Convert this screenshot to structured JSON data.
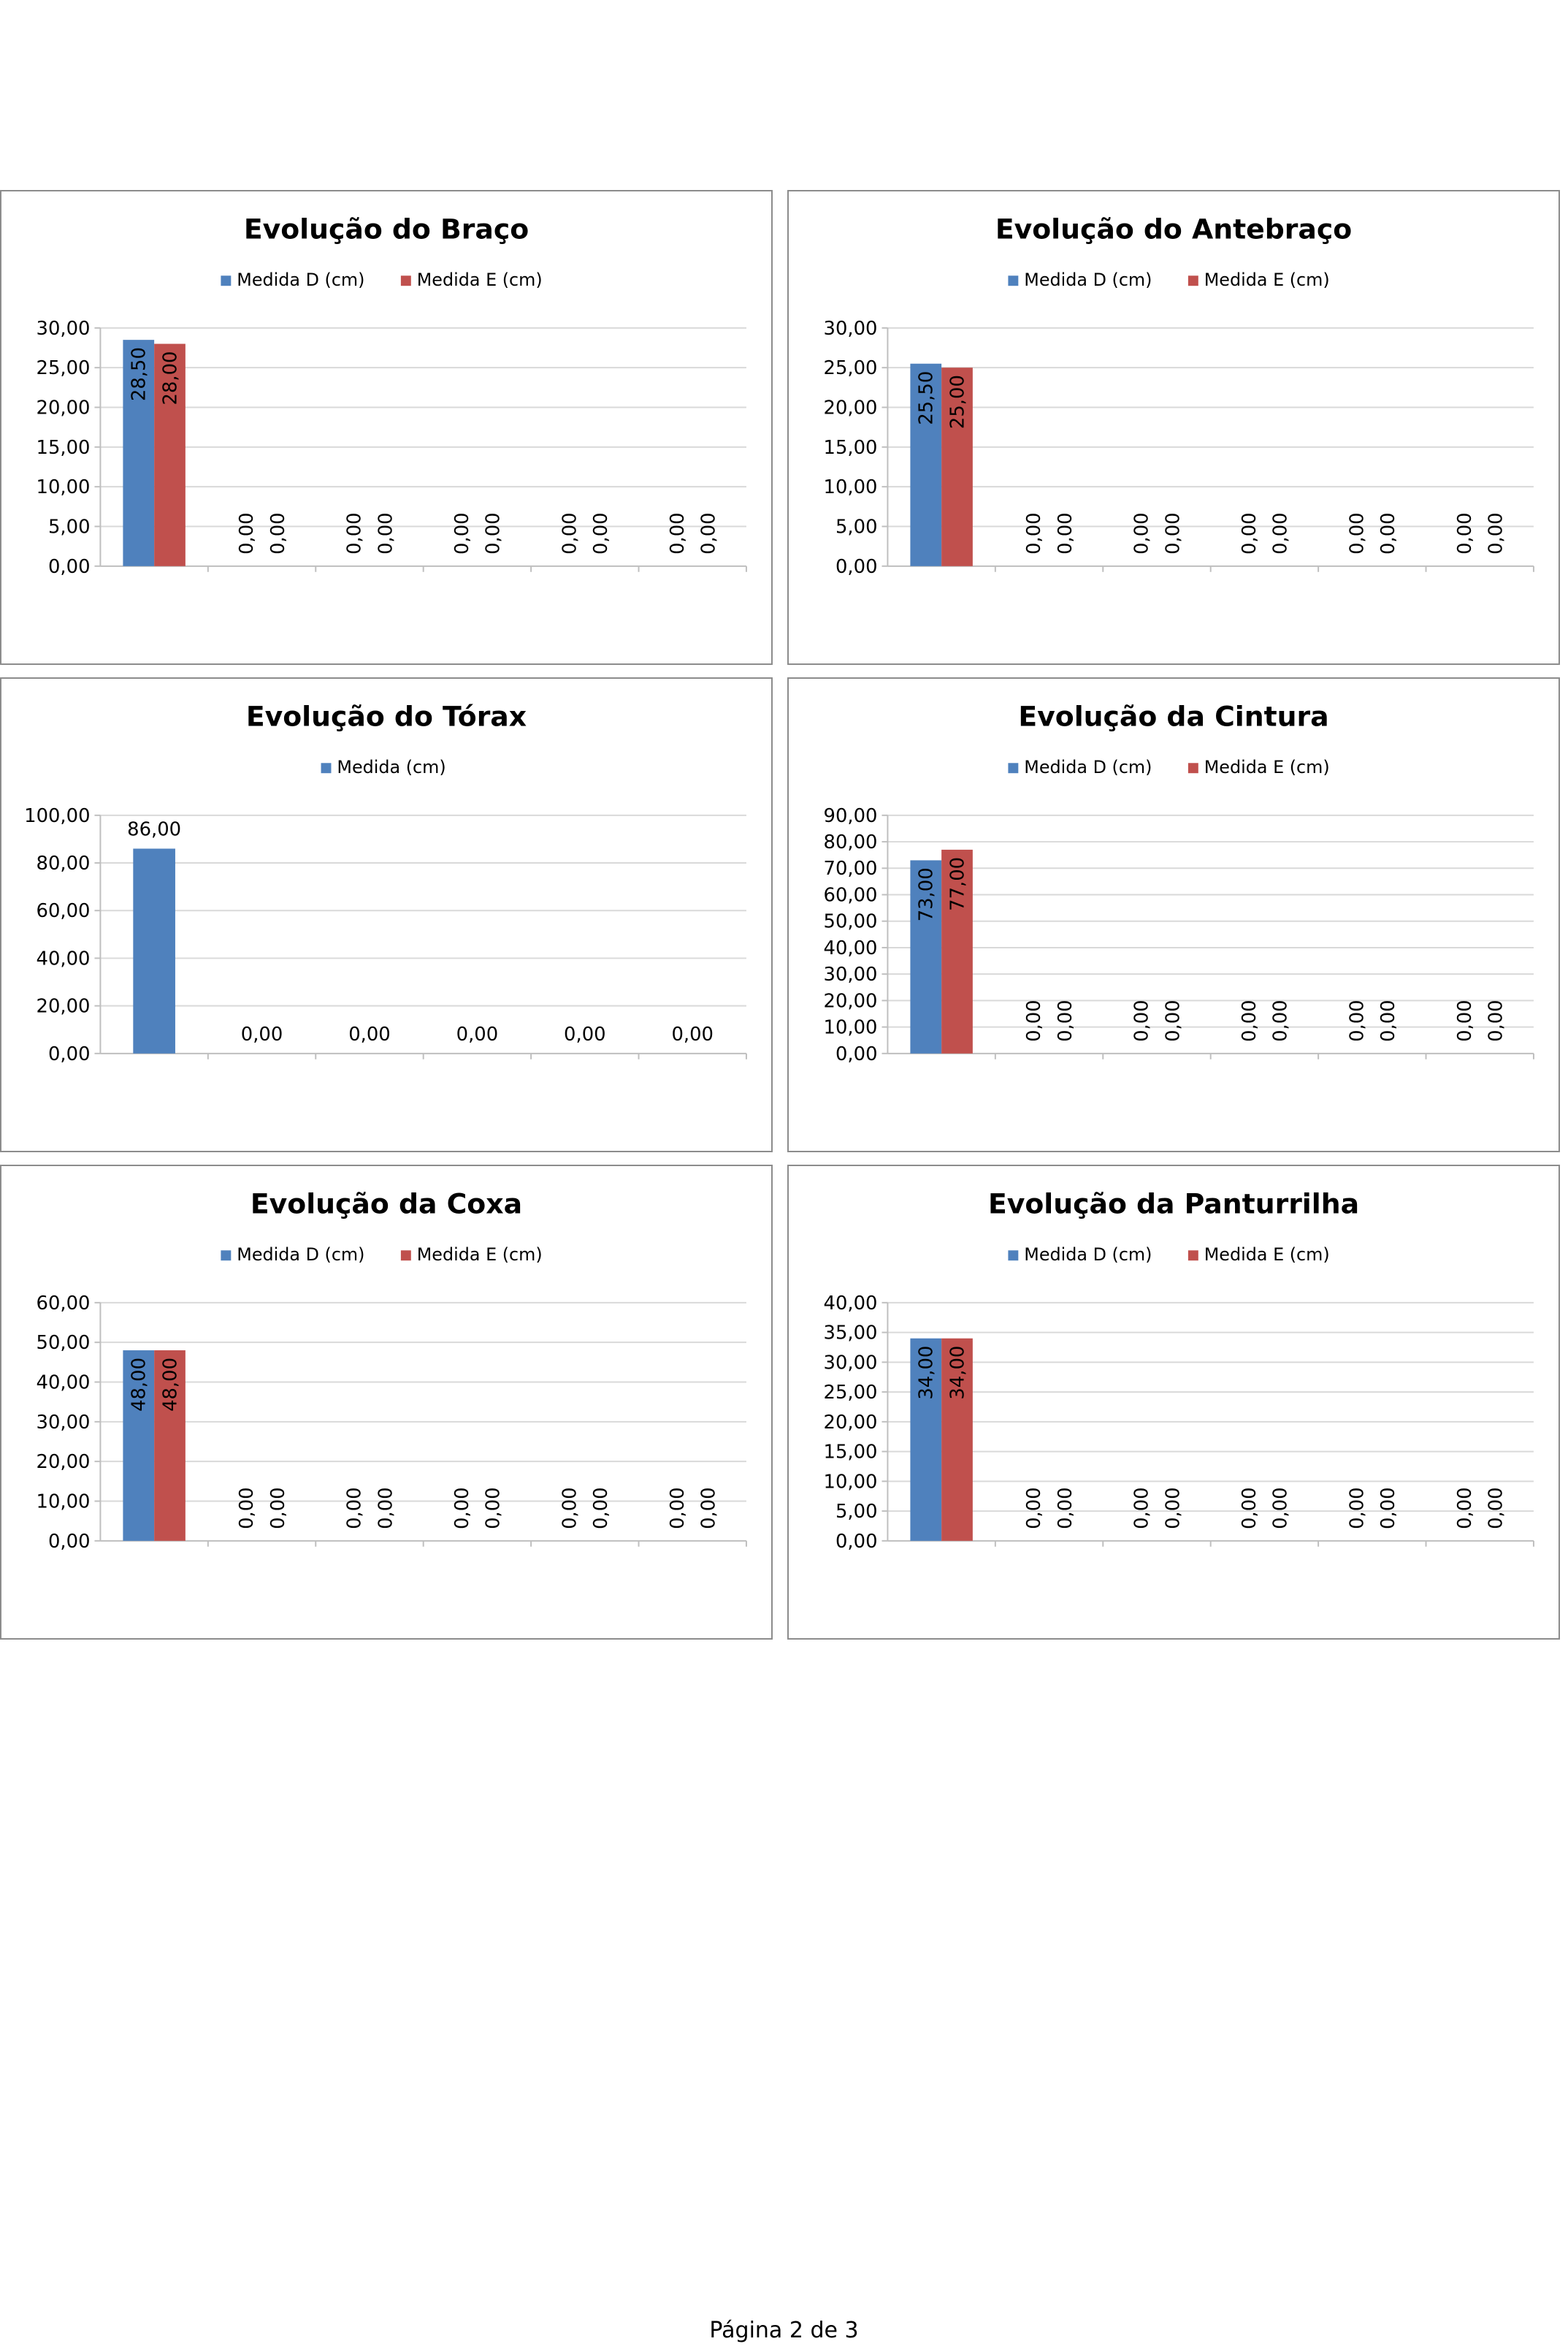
{
  "colors": {
    "series_d": "#4f81bd",
    "series_e": "#c0504d",
    "grid": "#d9d9d9",
    "axis": "#bfbfbf",
    "border": "#8c8c8c"
  },
  "chart_data": [
    {
      "type": "bar",
      "title": "Evolução do Braço",
      "categories": [
        "",
        "",
        "",
        "",
        "",
        ""
      ],
      "series": [
        {
          "name": "Medida D (cm)",
          "values": [
            28.5,
            0,
            0,
            0,
            0,
            0
          ],
          "labels": [
            "28,50",
            "0,00",
            "0,00",
            "0,00",
            "0,00",
            "0,00"
          ]
        },
        {
          "name": "Medida E (cm)",
          "values": [
            28.0,
            0,
            0,
            0,
            0,
            0
          ],
          "labels": [
            "28,00",
            "0,00",
            "0,00",
            "0,00",
            "0,00",
            "0,00"
          ]
        }
      ],
      "ylim": [
        0,
        30
      ],
      "yticks": [
        "0,00",
        "5,00",
        "10,00",
        "15,00",
        "20,00",
        "25,00",
        "30,00"
      ],
      "label_orientation": "vertical",
      "legend": "top",
      "grid": true
    },
    {
      "type": "bar",
      "title": "Evolução do Antebraço",
      "categories": [
        "",
        "",
        "",
        "",
        "",
        ""
      ],
      "series": [
        {
          "name": "Medida D (cm)",
          "values": [
            25.5,
            0,
            0,
            0,
            0,
            0
          ],
          "labels": [
            "25,50",
            "0,00",
            "0,00",
            "0,00",
            "0,00",
            "0,00"
          ]
        },
        {
          "name": "Medida E (cm)",
          "values": [
            25.0,
            0,
            0,
            0,
            0,
            0
          ],
          "labels": [
            "25,00",
            "0,00",
            "0,00",
            "0,00",
            "0,00",
            "0,00"
          ]
        }
      ],
      "ylim": [
        0,
        30
      ],
      "yticks": [
        "0,00",
        "5,00",
        "10,00",
        "15,00",
        "20,00",
        "25,00",
        "30,00"
      ],
      "label_orientation": "vertical",
      "legend": "top",
      "grid": true
    },
    {
      "type": "bar",
      "title": "Evolução do Tórax",
      "categories": [
        "",
        "",
        "",
        "",
        "",
        ""
      ],
      "series": [
        {
          "name": "Medida (cm)",
          "values": [
            86.0,
            0,
            0,
            0,
            0,
            0
          ],
          "labels": [
            "86,00",
            "0,00",
            "0,00",
            "0,00",
            "0,00",
            "0,00"
          ]
        }
      ],
      "ylim": [
        0,
        100
      ],
      "yticks": [
        "0,00",
        "20,00",
        "40,00",
        "60,00",
        "80,00",
        "100,00"
      ],
      "label_orientation": "horizontal",
      "legend": "top",
      "grid": true
    },
    {
      "type": "bar",
      "title": "Evolução da Cintura",
      "categories": [
        "",
        "",
        "",
        "",
        "",
        ""
      ],
      "series": [
        {
          "name": "Medida D (cm)",
          "values": [
            73.0,
            0,
            0,
            0,
            0,
            0
          ],
          "labels": [
            "73,00",
            "0,00",
            "0,00",
            "0,00",
            "0,00",
            "0,00"
          ]
        },
        {
          "name": "Medida E (cm)",
          "values": [
            77.0,
            0,
            0,
            0,
            0,
            0
          ],
          "labels": [
            "77,00",
            "0,00",
            "0,00",
            "0,00",
            "0,00",
            "0,00"
          ]
        }
      ],
      "ylim": [
        0,
        90
      ],
      "yticks": [
        "0,00",
        "10,00",
        "20,00",
        "30,00",
        "40,00",
        "50,00",
        "60,00",
        "70,00",
        "80,00",
        "90,00"
      ],
      "label_orientation": "vertical",
      "legend": "top",
      "grid": true
    },
    {
      "type": "bar",
      "title": "Evolução da Coxa",
      "categories": [
        "",
        "",
        "",
        "",
        "",
        ""
      ],
      "series": [
        {
          "name": "Medida D (cm)",
          "values": [
            48.0,
            0,
            0,
            0,
            0,
            0
          ],
          "labels": [
            "48,00",
            "0,00",
            "0,00",
            "0,00",
            "0,00",
            "0,00"
          ]
        },
        {
          "name": "Medida E (cm)",
          "values": [
            48.0,
            0,
            0,
            0,
            0,
            0
          ],
          "labels": [
            "48,00",
            "0,00",
            "0,00",
            "0,00",
            "0,00",
            "0,00"
          ]
        }
      ],
      "ylim": [
        0,
        60
      ],
      "yticks": [
        "0,00",
        "10,00",
        "20,00",
        "30,00",
        "40,00",
        "50,00",
        "60,00"
      ],
      "label_orientation": "vertical",
      "legend": "top",
      "grid": true
    },
    {
      "type": "bar",
      "title": "Evolução da Panturrilha",
      "categories": [
        "",
        "",
        "",
        "",
        "",
        ""
      ],
      "series": [
        {
          "name": "Medida D (cm)",
          "values": [
            34.0,
            0,
            0,
            0,
            0,
            0
          ],
          "labels": [
            "34,00",
            "0,00",
            "0,00",
            "0,00",
            "0,00",
            "0,00"
          ]
        },
        {
          "name": "Medida E (cm)",
          "values": [
            34.0,
            0,
            0,
            0,
            0,
            0
          ],
          "labels": [
            "34,00",
            "0,00",
            "0,00",
            "0,00",
            "0,00",
            "0,00"
          ]
        }
      ],
      "ylim": [
        0,
        40
      ],
      "yticks": [
        "0,00",
        "5,00",
        "10,00",
        "15,00",
        "20,00",
        "25,00",
        "30,00",
        "35,00",
        "40,00"
      ],
      "label_orientation": "vertical",
      "legend": "top",
      "grid": true
    }
  ],
  "footer": {
    "page_label": "Página 2 de 3"
  }
}
